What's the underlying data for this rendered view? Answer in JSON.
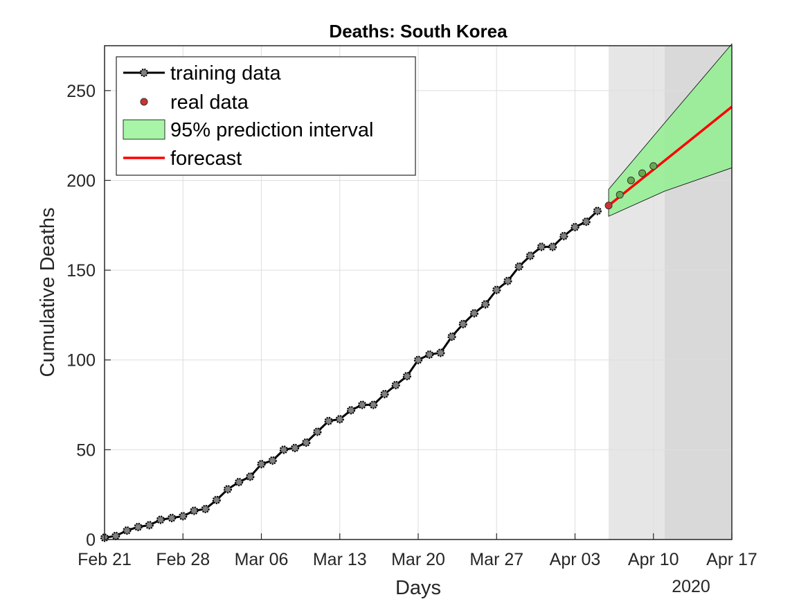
{
  "chart_data": {
    "type": "line",
    "title": "Deaths: South Korea",
    "xlabel": "Days",
    "ylabel": "Cumulative Deaths",
    "year_label": "2020",
    "x_tick_labels": [
      "Feb 21",
      "Feb 28",
      "Mar 06",
      "Mar 13",
      "Mar 20",
      "Mar 27",
      "Apr 03",
      "Apr 10",
      "Apr 17"
    ],
    "x_tick_dates": [
      "2020-02-21",
      "2020-02-28",
      "2020-03-06",
      "2020-03-13",
      "2020-03-20",
      "2020-03-27",
      "2020-04-03",
      "2020-04-10",
      "2020-04-17"
    ],
    "xlim": [
      "2020-02-21",
      "2020-04-17"
    ],
    "y_ticks": [
      0,
      50,
      100,
      150,
      200,
      250
    ],
    "ylim": [
      0,
      275
    ],
    "grid": true,
    "legend_position": "top-left",
    "shaded_regions": [
      {
        "from": "2020-04-06",
        "to": "2020-04-11",
        "color": "#e6e6e6"
      },
      {
        "from": "2020-04-11",
        "to": "2020-04-17",
        "color": "#d9d9d9"
      }
    ],
    "series": [
      {
        "name": "training data",
        "style": "line-marker",
        "color": "#000000",
        "marker_color": "#808080",
        "x": [
          "2020-02-21",
          "2020-02-22",
          "2020-02-23",
          "2020-02-24",
          "2020-02-25",
          "2020-02-26",
          "2020-02-27",
          "2020-02-28",
          "2020-02-29",
          "2020-03-01",
          "2020-03-02",
          "2020-03-03",
          "2020-03-04",
          "2020-03-05",
          "2020-03-06",
          "2020-03-07",
          "2020-03-08",
          "2020-03-09",
          "2020-03-10",
          "2020-03-11",
          "2020-03-12",
          "2020-03-13",
          "2020-03-14",
          "2020-03-15",
          "2020-03-16",
          "2020-03-17",
          "2020-03-18",
          "2020-03-19",
          "2020-03-20",
          "2020-03-21",
          "2020-03-22",
          "2020-03-23",
          "2020-03-24",
          "2020-03-25",
          "2020-03-26",
          "2020-03-27",
          "2020-03-28",
          "2020-03-29",
          "2020-03-30",
          "2020-03-31",
          "2020-04-01",
          "2020-04-02",
          "2020-04-03",
          "2020-04-04",
          "2020-04-05"
        ],
        "y": [
          1,
          2,
          5,
          7,
          8,
          11,
          12,
          13,
          16,
          17,
          22,
          28,
          32,
          35,
          42,
          44,
          50,
          51,
          54,
          60,
          66,
          67,
          72,
          75,
          75,
          81,
          86,
          91,
          100,
          103,
          104,
          113,
          120,
          126,
          131,
          139,
          144,
          152,
          158,
          163,
          163,
          169,
          174,
          177,
          183
        ]
      },
      {
        "name": "real data",
        "style": "marker",
        "color": "#cc3333",
        "x": [
          "2020-04-06",
          "2020-04-07",
          "2020-04-08",
          "2020-04-09",
          "2020-04-10"
        ],
        "y": [
          186,
          192,
          200,
          204,
          208
        ]
      },
      {
        "name": "95% prediction interval",
        "style": "band",
        "color": "#90ee90",
        "x": [
          "2020-04-06",
          "2020-04-11",
          "2020-04-17"
        ],
        "lower": [
          180,
          194,
          207
        ],
        "upper": [
          195,
          232,
          276
        ]
      },
      {
        "name": "forecast",
        "style": "line",
        "color": "#ff0000",
        "x": [
          "2020-04-06",
          "2020-04-17"
        ],
        "y": [
          186,
          241
        ]
      }
    ]
  }
}
